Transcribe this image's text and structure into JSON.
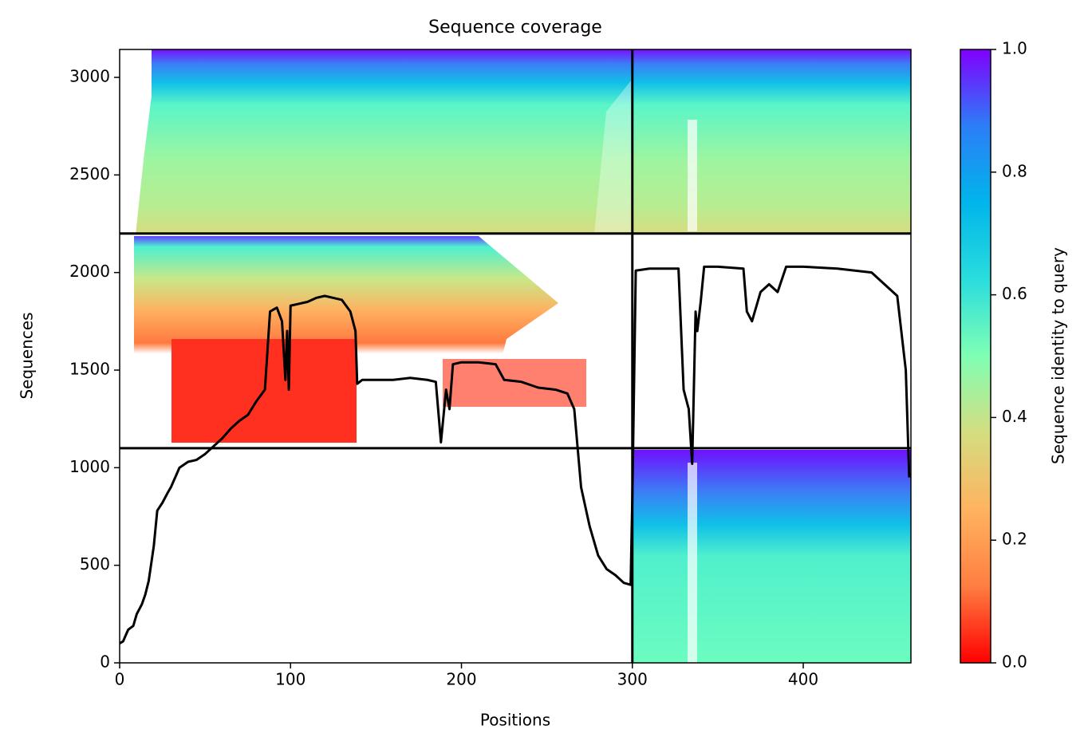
{
  "chart_data": {
    "type": "line",
    "title": "Sequence coverage",
    "x_label": "Positions",
    "y_label": "Sequences",
    "xlim": [
      0,
      463
    ],
    "ylim": [
      0,
      3143
    ],
    "xticks": [
      0,
      100,
      200,
      300,
      400
    ],
    "yticks": [
      0,
      500,
      1000,
      1500,
      2000,
      2500,
      3000
    ],
    "boundaries": {
      "x": [
        300
      ],
      "y": [
        1100,
        2200
      ],
      "color": "#000000"
    },
    "line": {
      "color": "#000000",
      "x": [
        0,
        2,
        5,
        8,
        10,
        13,
        15,
        17,
        20,
        22,
        25,
        28,
        30,
        33,
        35,
        40,
        45,
        50,
        55,
        60,
        65,
        70,
        75,
        80,
        85,
        88,
        92,
        95,
        97,
        98,
        99,
        100,
        105,
        110,
        115,
        120,
        125,
        130,
        135,
        138,
        139,
        142,
        150,
        160,
        170,
        180,
        185,
        188,
        191,
        193,
        195,
        200,
        210,
        220,
        225,
        235,
        245,
        255,
        262,
        266,
        268,
        270,
        275,
        280,
        285,
        290,
        295,
        299,
        300,
        302,
        310,
        320,
        327,
        330,
        333,
        335,
        337,
        338,
        340,
        342,
        350,
        365,
        367,
        370,
        375,
        380,
        385,
        390,
        400,
        420,
        440,
        455,
        460,
        462
      ],
      "values": [
        100,
        110,
        170,
        190,
        250,
        300,
        350,
        420,
        600,
        780,
        820,
        870,
        900,
        960,
        1000,
        1030,
        1040,
        1070,
        1110,
        1150,
        1200,
        1240,
        1270,
        1340,
        1400,
        1800,
        1820,
        1750,
        1450,
        1700,
        1400,
        1830,
        1840,
        1850,
        1870,
        1880,
        1870,
        1860,
        1800,
        1700,
        1430,
        1450,
        1450,
        1450,
        1460,
        1450,
        1440,
        1130,
        1400,
        1300,
        1530,
        1540,
        1540,
        1530,
        1450,
        1440,
        1410,
        1400,
        1380,
        1300,
        1100,
        900,
        700,
        550,
        480,
        450,
        410,
        400,
        850,
        2010,
        2020,
        2020,
        2020,
        1400,
        1300,
        1020,
        1800,
        1700,
        1850,
        2030,
        2030,
        2020,
        1800,
        1750,
        1900,
        1940,
        1900,
        2030,
        2030,
        2020,
        2000,
        1880,
        1500,
        950
      ]
    },
    "colorbar": {
      "label": "Sequence identity to query",
      "lim": [
        0,
        1
      ],
      "ticks": [
        {
          "value": 0,
          "label": "0.0"
        },
        {
          "value": 0.2,
          "label": "0.2"
        },
        {
          "value": 0.4,
          "label": "0.4"
        },
        {
          "value": 0.6,
          "label": "0.6"
        },
        {
          "value": 0.8,
          "label": "0.8"
        },
        {
          "value": 1,
          "label": "1.0"
        }
      ]
    }
  }
}
